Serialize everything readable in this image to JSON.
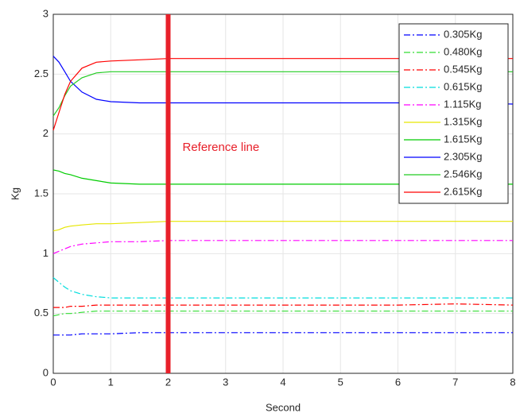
{
  "chart_data": {
    "type": "line",
    "x_label": "Second",
    "y_label": "Kg",
    "x": [
      0,
      0.1,
      0.2,
      0.3,
      0.5,
      0.75,
      1,
      1.5,
      2,
      3,
      4,
      5,
      6,
      7,
      8
    ],
    "xlim": [
      0,
      8
    ],
    "xticks": [
      0,
      1,
      2,
      3,
      4,
      5,
      6,
      7,
      8
    ],
    "ylim": [
      0,
      3
    ],
    "yticks": [
      0,
      0.5,
      1,
      1.5,
      2,
      2.5,
      3
    ],
    "grid": true,
    "legend": "upper right",
    "reference_line": {
      "x": 2,
      "label": "Reference line",
      "color": "#e8202a"
    },
    "series": [
      {
        "name": "0.305Kg",
        "color": "#0000ff",
        "style": "dashdot",
        "values": [
          0.32,
          0.32,
          0.32,
          0.32,
          0.33,
          0.33,
          0.33,
          0.34,
          0.34,
          0.34,
          0.34,
          0.34,
          0.34,
          0.34,
          0.34
        ]
      },
      {
        "name": "0.480Kg",
        "color": "#33dd33",
        "style": "dashdot",
        "values": [
          0.48,
          0.49,
          0.5,
          0.5,
          0.51,
          0.52,
          0.52,
          0.52,
          0.52,
          0.52,
          0.52,
          0.52,
          0.52,
          0.52,
          0.52
        ]
      },
      {
        "name": "0.545Kg",
        "color": "#ff0000",
        "style": "dashdot",
        "values": [
          0.55,
          0.55,
          0.55,
          0.56,
          0.56,
          0.57,
          0.57,
          0.57,
          0.57,
          0.57,
          0.57,
          0.57,
          0.57,
          0.58,
          0.57
        ]
      },
      {
        "name": "0.615Kg",
        "color": "#00dddd",
        "style": "dashdot",
        "values": [
          0.8,
          0.76,
          0.72,
          0.69,
          0.66,
          0.64,
          0.63,
          0.63,
          0.63,
          0.63,
          0.63,
          0.63,
          0.63,
          0.63,
          0.63
        ]
      },
      {
        "name": "1.115Kg",
        "color": "#ff00ff",
        "style": "dashdot",
        "values": [
          1.0,
          1.02,
          1.04,
          1.06,
          1.08,
          1.09,
          1.1,
          1.1,
          1.11,
          1.11,
          1.11,
          1.11,
          1.11,
          1.11,
          1.11
        ]
      },
      {
        "name": "1.315Kg",
        "color": "#e6e600",
        "style": "solid",
        "values": [
          1.19,
          1.2,
          1.22,
          1.23,
          1.24,
          1.25,
          1.25,
          1.26,
          1.27,
          1.27,
          1.27,
          1.27,
          1.27,
          1.27,
          1.27
        ]
      },
      {
        "name": "1.615Kg",
        "color": "#00cc00",
        "style": "solid",
        "values": [
          1.7,
          1.69,
          1.67,
          1.66,
          1.63,
          1.61,
          1.59,
          1.58,
          1.58,
          1.58,
          1.58,
          1.58,
          1.58,
          1.58,
          1.58
        ]
      },
      {
        "name": "2.305Kg",
        "color": "#0000ff",
        "style": "solid",
        "values": [
          2.65,
          2.6,
          2.52,
          2.44,
          2.35,
          2.29,
          2.27,
          2.26,
          2.26,
          2.26,
          2.26,
          2.26,
          2.26,
          2.26,
          2.25
        ]
      },
      {
        "name": "2.546Kg",
        "color": "#22cc22",
        "style": "solid",
        "values": [
          2.15,
          2.22,
          2.32,
          2.4,
          2.47,
          2.51,
          2.52,
          2.52,
          2.52,
          2.52,
          2.52,
          2.52,
          2.52,
          2.52,
          2.52
        ]
      },
      {
        "name": "2.615Kg",
        "color": "#ff0000",
        "style": "solid",
        "values": [
          2.03,
          2.18,
          2.33,
          2.44,
          2.55,
          2.6,
          2.61,
          2.62,
          2.63,
          2.63,
          2.63,
          2.63,
          2.63,
          2.63,
          2.63
        ]
      }
    ]
  }
}
